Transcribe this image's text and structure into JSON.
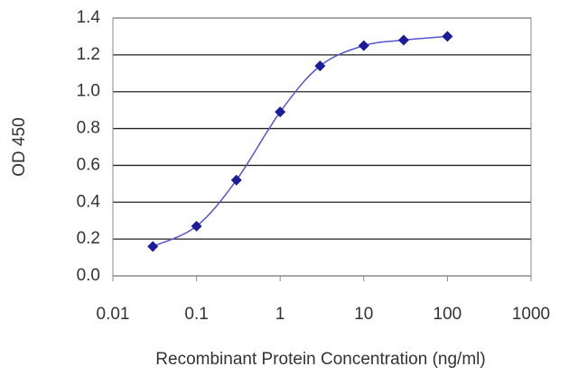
{
  "chart_data": {
    "type": "line",
    "x_label": "Recombinant Protein Concentration (ng/ml)",
    "y_label": "OD 450",
    "x": [
      0.03,
      0.1,
      0.3,
      1,
      3,
      10,
      30,
      100
    ],
    "series": [
      {
        "color": "#1c1c99",
        "values": [
          0.16,
          0.27,
          0.52,
          0.89,
          1.14,
          1.25,
          1.28,
          1.3
        ]
      }
    ],
    "xscale": "log",
    "xlim": [
      0.01,
      1000
    ],
    "xticks": [
      0.01,
      0.1,
      1,
      10,
      100,
      1000
    ],
    "ylim": [
      0,
      1.4
    ],
    "yticks": [
      {
        "value": 0,
        "label": "0.0"
      },
      0.2,
      0.4,
      0.6,
      0.8,
      {
        "value": 1,
        "label": "1.0"
      },
      1.2,
      1.4
    ],
    "grid": true
  }
}
